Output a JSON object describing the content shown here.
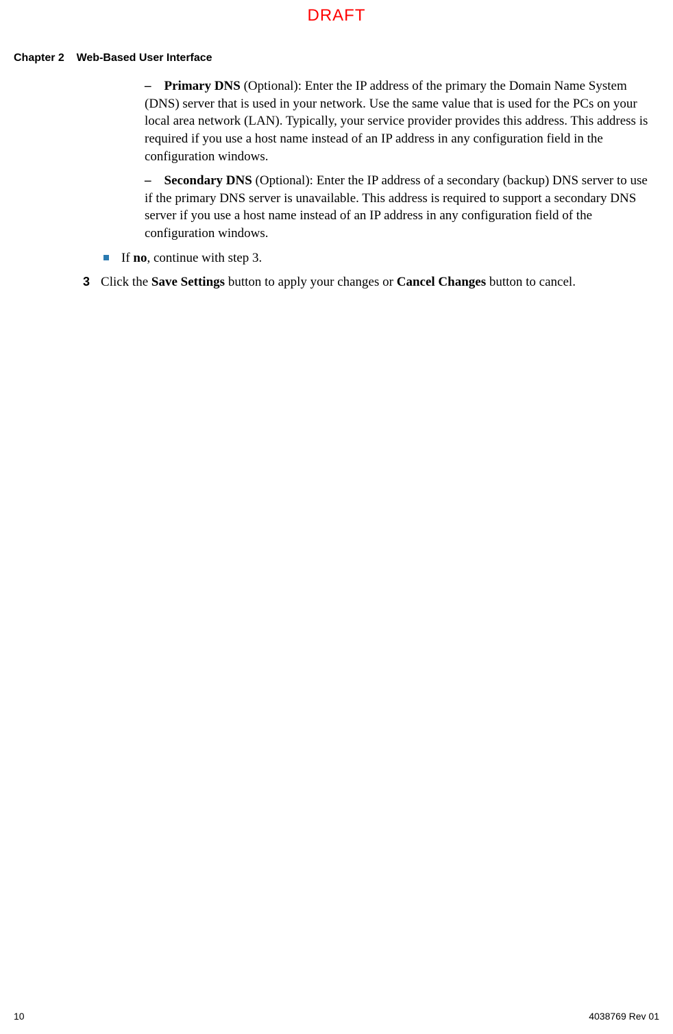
{
  "watermark": "DRAFT",
  "header": {
    "chapter_number": "Chapter 2",
    "chapter_title": "Web-Based User Interface"
  },
  "content": {
    "primary_dns": {
      "dash": "–",
      "label": "Primary DNS",
      "optional": " (Optional): ",
      "text": "Enter the IP address of the primary the Domain Name System (DNS) server that is used in your network. Use the same value that is used for the PCs on your local area network (LAN). Typically, your service provider provides this address. This address is required if you use a host name instead of an IP address in any configuration field in the configuration windows."
    },
    "secondary_dns": {
      "dash": "–",
      "label": "Secondary DNS",
      "optional": " (Optional): ",
      "text": "Enter the IP address of a secondary (backup) DNS server to use if the primary DNS server is unavailable. This address is required to support a secondary DNS server if you use a host name instead of an IP address in any configuration field of the configuration windows."
    },
    "if_no": {
      "prefix": "If ",
      "bold": "no",
      "suffix": ", continue with step 3."
    },
    "step3": {
      "number": "3",
      "text1": "Click the ",
      "bold1": "Save Settings",
      "text2": " button to apply your changes or ",
      "bold2": "Cancel Changes",
      "text3": " button to cancel."
    }
  },
  "footer": {
    "page_number": "10",
    "doc_id": "4038769 Rev 01"
  },
  "colors": {
    "draft_red": "#ff0000",
    "bullet_blue": "#2a7ab0",
    "text": "#000000",
    "background": "#ffffff"
  }
}
